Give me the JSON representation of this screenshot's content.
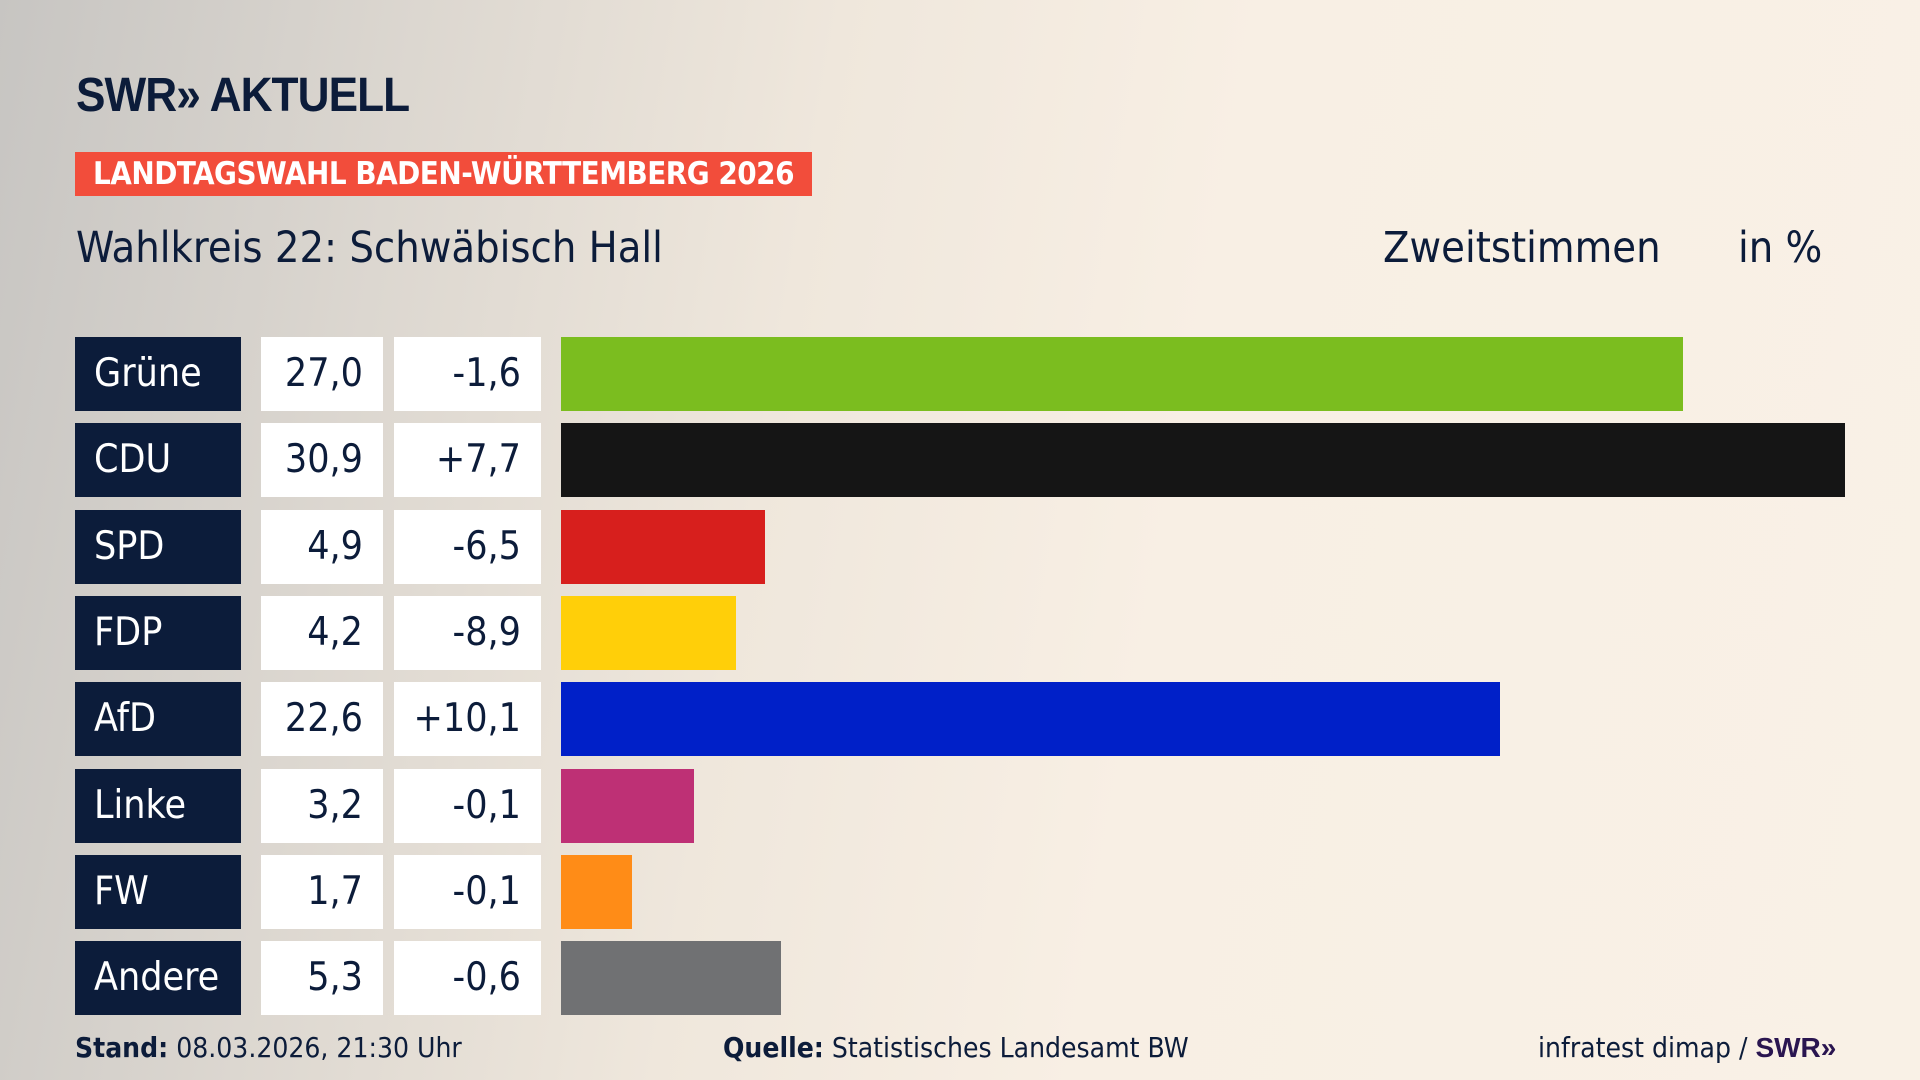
{
  "header": {
    "logo": "SWR» AKTUELL",
    "banner": "LANDTAGSWAHL BADEN-WÜRTTEMBERG 2026",
    "subtitle": "Wahlkreis 22: Schwäbisch Hall",
    "vote_type": "Zweitstimmen",
    "unit": "in %"
  },
  "chart_data": {
    "type": "bar",
    "orientation": "horizontal",
    "title": "Wahlkreis 22: Schwäbisch Hall",
    "categories": [
      "Grüne",
      "CDU",
      "SPD",
      "FDP",
      "AfD",
      "Linke",
      "FW",
      "Andere"
    ],
    "values": [
      27.0,
      30.9,
      4.9,
      4.2,
      22.6,
      3.2,
      1.7,
      5.3
    ],
    "value_labels": [
      "27,0",
      "30,9",
      "4,9",
      "4,2",
      "22,6",
      "3,2",
      "1,7",
      "5,3"
    ],
    "diff_labels": [
      "-1,6",
      "+7,7",
      "-6,5",
      "-8,9",
      "+10,1",
      "-0,1",
      "-0,1",
      "-0,6"
    ],
    "colors": [
      "#7bbd1f",
      "#151515",
      "#d71f1d",
      "#ffcf09",
      "#0020c8",
      "#be3075",
      "#ff8c17",
      "#707173"
    ],
    "xlim": [
      0,
      30.9
    ],
    "grid": false
  },
  "footer": {
    "stand_label": "Stand:",
    "stand_value": "08.03.2026, 21:30 Uhr",
    "source_label": "Quelle:",
    "source_value": "Statistisches Landesamt BW",
    "credit": "infratest dimap /",
    "credit_logo": "SWR»"
  }
}
